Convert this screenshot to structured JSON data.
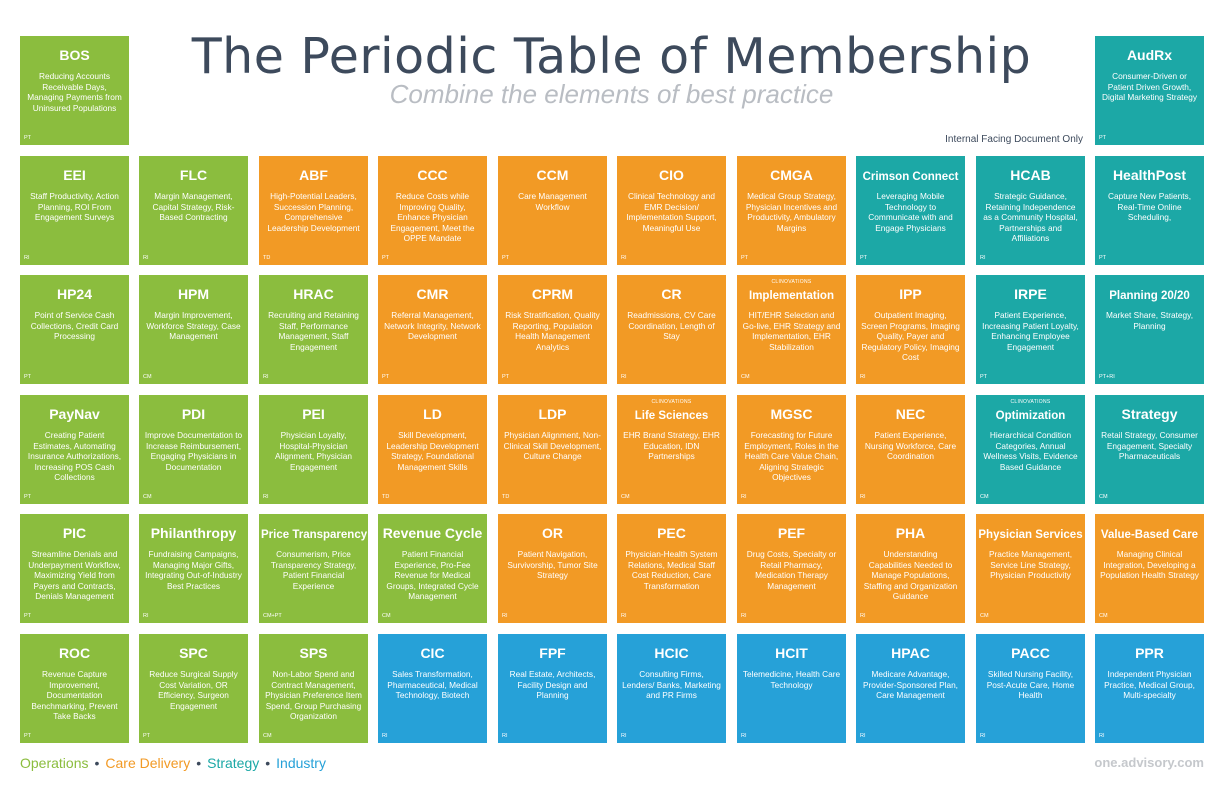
{
  "header": {
    "title": "The Periodic Table of Membership",
    "subtitle": "Combine the elements of best practice",
    "disclaimer": "Internal Facing Document Only"
  },
  "colors": {
    "operations": "#8bbd3e",
    "care_delivery": "#f29a25",
    "strategy": "#1ca8a6",
    "industry": "#26a1d8"
  },
  "elements": [
    {
      "abbr": "BOS",
      "desc": "Reducing Accounts Receivable Days, Managing Payments from Uninsured Populations",
      "code": "PT",
      "category": "ops",
      "row": 0,
      "col": 0
    },
    {
      "abbr": "AudRx",
      "desc": "Consumer-Driven or Patient Driven Growth, Digital Marketing Strategy",
      "code": "PT",
      "category": "strat",
      "row": 0,
      "col": 9
    },
    {
      "abbr": "EEI",
      "desc": "Staff Productivity, Action Planning, ROI From Engagement Surveys",
      "code": "RI",
      "category": "ops",
      "row": 1,
      "col": 0
    },
    {
      "abbr": "FLC",
      "desc": "Margin Management, Capital Strategy, Risk-Based Contracting",
      "code": "RI",
      "category": "ops",
      "row": 1,
      "col": 1
    },
    {
      "abbr": "ABF",
      "desc": "High-Potential Leaders, Succession Planning, Comprehensive Leadership Development",
      "code": "TD",
      "category": "care",
      "row": 1,
      "col": 2
    },
    {
      "abbr": "CCC",
      "desc": "Reduce Costs while Improving Quality, Enhance Physician Engagement, Meet the OPPE Mandate",
      "code": "PT",
      "category": "care",
      "row": 1,
      "col": 3
    },
    {
      "abbr": "CCM",
      "desc": "Care Management Workflow",
      "code": "PT",
      "category": "care",
      "row": 1,
      "col": 4
    },
    {
      "abbr": "CIO",
      "desc": "Clinical Technology and EMR Decision/ Implementation Support, Meaningful Use",
      "code": "RI",
      "category": "care",
      "row": 1,
      "col": 5
    },
    {
      "abbr": "CMGA",
      "desc": "Medical Group Strategy, Physician Incentives and Productivity, Ambulatory Margins",
      "code": "PT",
      "category": "care",
      "row": 1,
      "col": 6
    },
    {
      "abbr": "Crimson Connect",
      "small": true,
      "desc": "Leveraging Mobile Technology to Communicate with and Engage Physicians",
      "code": "PT",
      "category": "strat",
      "row": 1,
      "col": 7
    },
    {
      "abbr": "HCAB",
      "desc": "Strategic Guidance, Retaining Independence as a Community Hospital, Partnerships and Affiliations",
      "code": "RI",
      "category": "strat",
      "row": 1,
      "col": 8
    },
    {
      "abbr": "HealthPost",
      "desc": "Capture New Patients, Real-Time Online Scheduling,",
      "code": "PT",
      "category": "strat",
      "row": 1,
      "col": 9
    },
    {
      "abbr": "HP24",
      "desc": "Point of Service Cash Collections, Credit Card Processing",
      "code": "PT",
      "category": "ops",
      "row": 2,
      "col": 0
    },
    {
      "abbr": "HPM",
      "desc": "Margin Improvement, Workforce Strategy, Case Management",
      "code": "CM",
      "category": "ops",
      "row": 2,
      "col": 1
    },
    {
      "abbr": "HRAC",
      "desc": "Recruiting and Retaining Staff, Performance Management, Staff Engagement",
      "code": "RI",
      "category": "ops",
      "row": 2,
      "col": 2
    },
    {
      "abbr": "CMR",
      "desc": "Referral Management, Network Integrity, Network Development",
      "code": "PT",
      "category": "care",
      "row": 2,
      "col": 3
    },
    {
      "abbr": "CPRM",
      "desc": "Risk Stratification, Quality Reporting, Population Health Management Analytics",
      "code": "PT",
      "category": "care",
      "row": 2,
      "col": 4
    },
    {
      "abbr": "CR",
      "desc": "Readmissions, CV Care Coordination, Length of Stay",
      "code": "RI",
      "category": "care",
      "row": 2,
      "col": 5
    },
    {
      "abbr": "Implementation",
      "small": true,
      "sup": "CLINOVATIONS",
      "desc": "HIT/EHR Selection and Go-live, EHR Strategy and Implementation, EHR Stabilization",
      "code": "CM",
      "category": "care",
      "row": 2,
      "col": 6
    },
    {
      "abbr": "IPP",
      "desc": "Outpatient Imaging, Screen Programs, Imaging Quality, Payer and Regulatory Policy, Imaging Cost",
      "code": "RI",
      "category": "care",
      "row": 2,
      "col": 7
    },
    {
      "abbr": "IRPE",
      "desc": "Patient Experience, Increasing Patient Loyalty, Enhancing Employee Engagement",
      "code": "PT",
      "category": "strat",
      "row": 2,
      "col": 8
    },
    {
      "abbr": "Planning 20/20",
      "small": true,
      "desc": "Market Share, Strategy, Planning",
      "code": "PT+RI",
      "category": "strat",
      "row": 2,
      "col": 9
    },
    {
      "abbr": "PayNav",
      "desc": "Creating Patient Estimates, Automating Insurance Authorizations, Increasing POS Cash Collections",
      "code": "PT",
      "category": "ops",
      "row": 3,
      "col": 0
    },
    {
      "abbr": "PDI",
      "desc": "Improve Documentation to Increase Reimbursement, Engaging Physicians in Documentation",
      "code": "CM",
      "category": "ops",
      "row": 3,
      "col": 1
    },
    {
      "abbr": "PEI",
      "desc": "Physician Loyalty, Hospital-Physician Alignment, Physician Engagement",
      "code": "RI",
      "category": "ops",
      "row": 3,
      "col": 2
    },
    {
      "abbr": "LD",
      "desc": "Skill Development, Leadership Development Strategy, Foundational Management Skills",
      "code": "TD",
      "category": "care",
      "row": 3,
      "col": 3
    },
    {
      "abbr": "LDP",
      "desc": "Physician Alignment, Non-Clinical Skill Development, Culture Change",
      "code": "TD",
      "category": "care",
      "row": 3,
      "col": 4
    },
    {
      "abbr": "Life Sciences",
      "small": true,
      "sup": "CLINOVATIONS",
      "desc": "EHR Brand Strategy, EHR Education, IDN Partnerships",
      "code": "CM",
      "category": "care",
      "row": 3,
      "col": 5
    },
    {
      "abbr": "MGSC",
      "desc": "Forecasting for Future Employment, Roles in the Health Care Value Chain, Aligning Strategic Objectives",
      "code": "RI",
      "category": "care",
      "row": 3,
      "col": 6
    },
    {
      "abbr": "NEC",
      "desc": "Patient Experience, Nursing Workforce, Care Coordination",
      "code": "RI",
      "category": "care",
      "row": 3,
      "col": 7
    },
    {
      "abbr": "Optimization",
      "small": true,
      "sup": "CLINOVATIONS",
      "desc": "Hierarchical Condition Categories, Annual Wellness Visits, Evidence Based Guidance",
      "code": "CM",
      "category": "strat",
      "row": 3,
      "col": 8
    },
    {
      "abbr": "Strategy",
      "desc": "Retail Strategy, Consumer Engagement, Specialty Pharmaceuticals",
      "code": "CM",
      "category": "strat",
      "row": 3,
      "col": 9
    },
    {
      "abbr": "PIC",
      "desc": "Streamline Denials and Underpayment Workflow, Maximizing Yield from Payers and Contracts, Denials Management",
      "code": "PT",
      "category": "ops",
      "row": 4,
      "col": 0
    },
    {
      "abbr": "Philanthropy",
      "desc": "Fundraising Campaigns, Managing Major Gifts, Integrating Out-of-Industry Best Practices",
      "code": "RI",
      "category": "ops",
      "row": 4,
      "col": 1
    },
    {
      "abbr": "Price Transparency",
      "small": true,
      "desc": "Consumerism, Price Transparency Strategy, Patient Financial Experience",
      "code": "CM+PT",
      "category": "ops",
      "row": 4,
      "col": 2
    },
    {
      "abbr": "Revenue Cycle",
      "desc": "Patient Financial Experience, Pro-Fee Revenue for Medical Groups, Integrated Cycle Management",
      "code": "CM",
      "category": "ops",
      "row": 4,
      "col": 3
    },
    {
      "abbr": "OR",
      "desc": "Patient Navigation, Survivorship, Tumor Site Strategy",
      "code": "RI",
      "category": "care",
      "row": 4,
      "col": 4
    },
    {
      "abbr": "PEC",
      "desc": "Physician-Health System Relations, Medical Staff Cost Reduction, Care Transformation",
      "code": "RI",
      "category": "care",
      "row": 4,
      "col": 5
    },
    {
      "abbr": "PEF",
      "desc": "Drug Costs, Specialty or Retail Pharmacy, Medication Therapy Management",
      "code": "RI",
      "category": "care",
      "row": 4,
      "col": 6
    },
    {
      "abbr": "PHA",
      "desc": "Understanding Capabilities Needed to Manage Populations, Staffing and Organization Guidance",
      "code": "RI",
      "category": "care",
      "row": 4,
      "col": 7
    },
    {
      "abbr": "Physician Services",
      "small": true,
      "desc": "Practice Management, Service Line Strategy, Physician Productivity",
      "code": "CM",
      "category": "care",
      "row": 4,
      "col": 8
    },
    {
      "abbr": "Value-Based Care",
      "small": true,
      "desc": "Managing Clinical Integration, Developing a Population Health Strategy",
      "code": "CM",
      "category": "care",
      "row": 4,
      "col": 9
    },
    {
      "abbr": "ROC",
      "desc": "Revenue Capture Improvement, Documentation Benchmarking, Prevent Take Backs",
      "code": "PT",
      "category": "ops",
      "row": 5,
      "col": 0
    },
    {
      "abbr": "SPC",
      "desc": "Reduce Surgical Supply Cost Variation, OR Efficiency, Surgeon Engagement",
      "code": "PT",
      "category": "ops",
      "row": 5,
      "col": 1
    },
    {
      "abbr": "SPS",
      "desc": "Non-Labor Spend and Contract Management, Physician Preference Item Spend, Group Purchasing Organization",
      "code": "CM",
      "category": "ops",
      "row": 5,
      "col": 2
    },
    {
      "abbr": "CIC",
      "desc": "Sales Transformation, Pharmaceutical, Medical Technology, Biotech",
      "code": "RI",
      "category": "ind",
      "row": 5,
      "col": 3
    },
    {
      "abbr": "FPF",
      "desc": "Real Estate, Architects, Facility Design and Planning",
      "code": "RI",
      "category": "ind",
      "row": 5,
      "col": 4
    },
    {
      "abbr": "HCIC",
      "desc": "Consulting Firms, Lenders/ Banks, Marketing and PR Firms",
      "code": "RI",
      "category": "ind",
      "row": 5,
      "col": 5
    },
    {
      "abbr": "HCIT",
      "desc": "Telemedicine, Health Care Technology",
      "code": "RI",
      "category": "ind",
      "row": 5,
      "col": 6
    },
    {
      "abbr": "HPAC",
      "desc": "Medicare Advantage, Provider-Sponsored Plan, Care Management",
      "code": "RI",
      "category": "ind",
      "row": 5,
      "col": 7
    },
    {
      "abbr": "PACC",
      "desc": "Skilled Nursing Facility, Post-Acute Care, Home Health",
      "code": "RI",
      "category": "ind",
      "row": 5,
      "col": 8
    },
    {
      "abbr": "PPR",
      "desc": "Independent Physician Practice, Medical Group, Multi-specialty",
      "code": "RI",
      "category": "ind",
      "row": 5,
      "col": 9
    }
  ],
  "legend": {
    "items": [
      {
        "label": "Operations",
        "color": "#8bbd3e"
      },
      {
        "label": "Care Delivery",
        "color": "#f29a25"
      },
      {
        "label": "Strategy",
        "color": "#1ca8a6"
      },
      {
        "label": "Industry",
        "color": "#26a1d8"
      }
    ],
    "separator": "•"
  },
  "footer": {
    "site": "one.advisory.com"
  }
}
